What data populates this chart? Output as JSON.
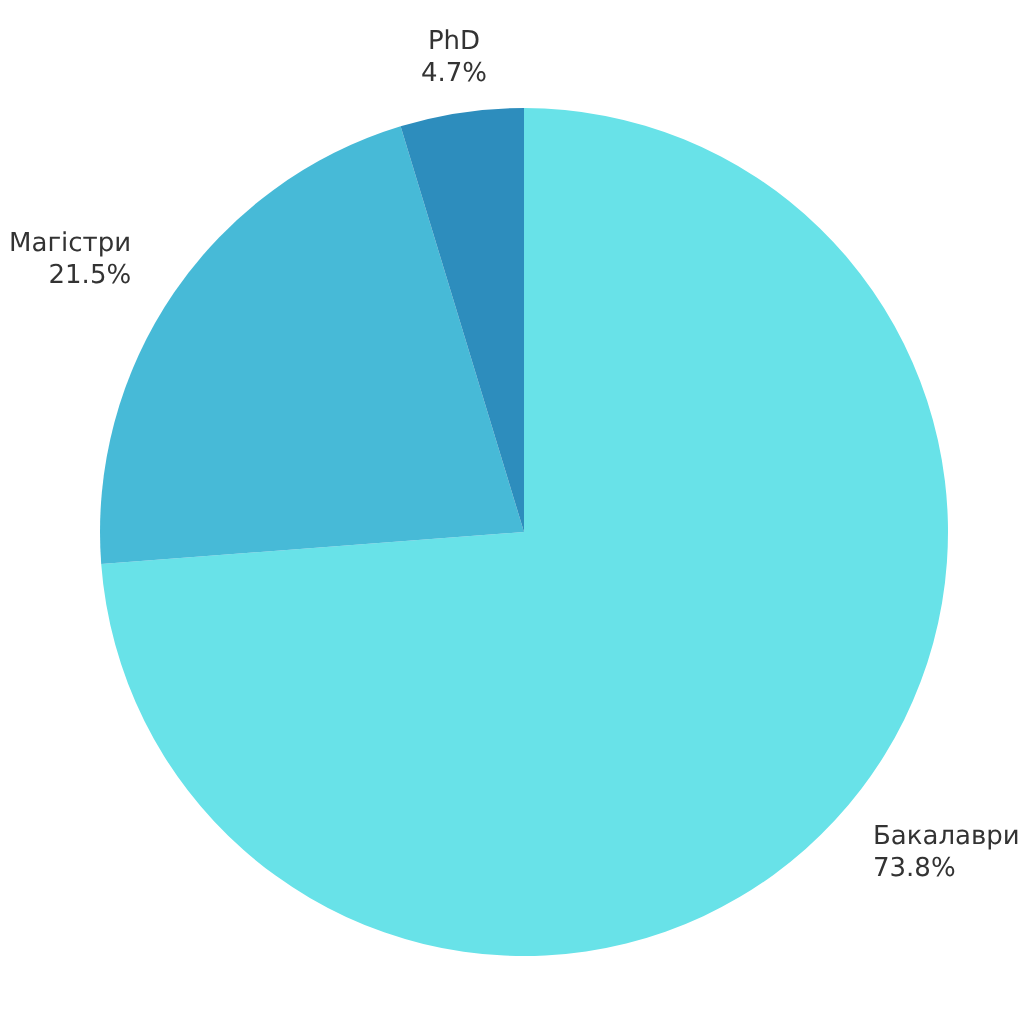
{
  "chart_data": {
    "type": "pie",
    "categories": [
      "Бакалаври",
      "Магістри",
      "PhD"
    ],
    "values": [
      73.8,
      21.5,
      4.7
    ],
    "value_labels": [
      "73.8%",
      "21.5%",
      "4.7%"
    ],
    "colors": [
      "#68e2e8",
      "#47bad7",
      "#2d8dbd"
    ]
  }
}
